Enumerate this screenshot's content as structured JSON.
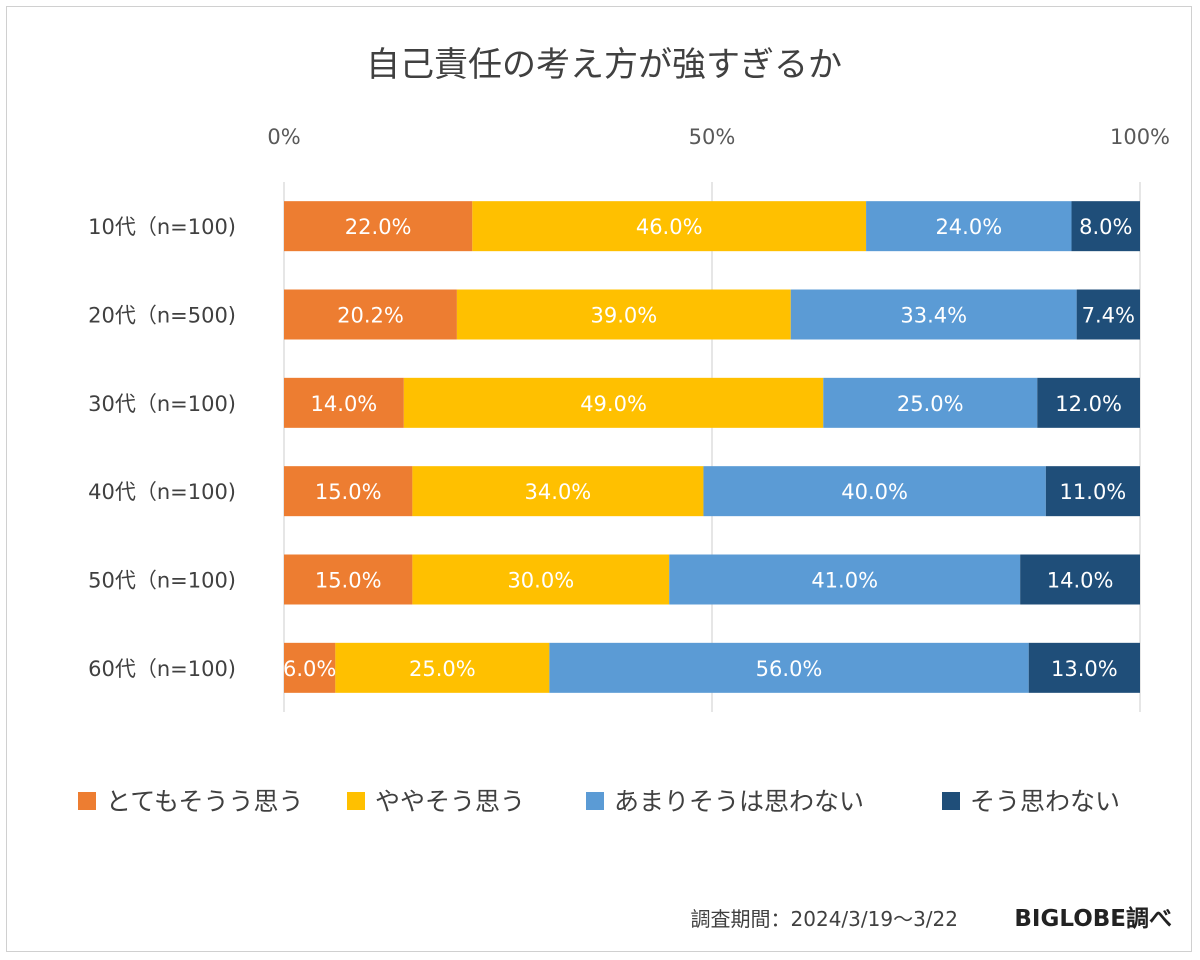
{
  "chart_data": {
    "type": "bar",
    "orientation": "horizontal",
    "stacked": "percent",
    "title": "自己責任の考え方が強すぎるか",
    "categories": [
      "10代（n=100)",
      "20代（n=500)",
      "30代（n=100)",
      "40代（n=100)",
      "50代（n=100)",
      "60代（n=100)"
    ],
    "series": [
      {
        "name": "とてもそうう思う",
        "color": "#ED7D31",
        "values": [
          22.0,
          20.2,
          14.0,
          15.0,
          15.0,
          6.0
        ],
        "labels": [
          "22.0%",
          "20.2%",
          "14.0%",
          "15.0%",
          "15.0%",
          "6.0%"
        ]
      },
      {
        "name": "ややそう思う",
        "color": "#FFC000",
        "values": [
          46.0,
          39.0,
          49.0,
          34.0,
          30.0,
          25.0
        ],
        "labels": [
          "46.0%",
          "39.0%",
          "49.0%",
          "34.0%",
          "30.0%",
          "25.0%"
        ]
      },
      {
        "name": "あまりそうは思わない",
        "color": "#5B9BD5",
        "values": [
          24.0,
          33.4,
          25.0,
          40.0,
          41.0,
          56.0
        ],
        "labels": [
          "24.0%",
          "33.4%",
          "25.0%",
          "40.0%",
          "41.0%",
          "56.0%"
        ]
      },
      {
        "name": "そう思わない",
        "color": "#1F4E79",
        "values": [
          8.0,
          7.4,
          12.0,
          11.0,
          14.0,
          13.0
        ],
        "labels": [
          "8.0%",
          "7.4%",
          "12.0%",
          "11.0%",
          "14.0%",
          "13.0%"
        ]
      }
    ],
    "xlim": [
      0,
      100
    ],
    "xticks": [
      "0%",
      "50%",
      "100%"
    ],
    "xtick_values": [
      0,
      50,
      100
    ],
    "grid": true,
    "legend_position": "bottom"
  },
  "footer": {
    "survey_period": "調査期間：2024/3/19～3/22",
    "source": "BIGLOBE調べ"
  }
}
